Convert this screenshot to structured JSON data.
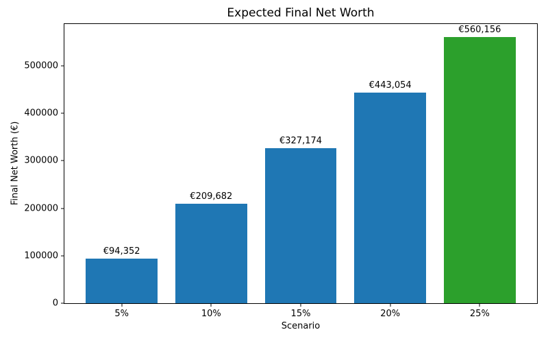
{
  "chart_data": {
    "type": "bar",
    "title": "Expected Final Net Worth",
    "xlabel": "Scenario",
    "ylabel": "Final Net Worth (€)",
    "categories": [
      "5%",
      "10%",
      "15%",
      "20%",
      "25%"
    ],
    "values": [
      94352,
      209682,
      327174,
      443054,
      560156
    ],
    "bar_labels": [
      "€94,352",
      "€209,682",
      "€327,174",
      "€443,054",
      "€560,156"
    ],
    "bar_colors": [
      "#1f77b4",
      "#1f77b4",
      "#1f77b4",
      "#1f77b4",
      "#2ca02c"
    ],
    "bar_width": 0.8,
    "xlim": [
      -0.64,
      4.64
    ],
    "ylim": [
      0,
      588164
    ],
    "yticks": [
      0,
      100000,
      200000,
      300000,
      400000,
      500000
    ],
    "ytick_labels": [
      "0",
      "100000",
      "200000",
      "300000",
      "400000",
      "500000"
    ],
    "grid": false,
    "legend": "none",
    "spines": "all"
  }
}
